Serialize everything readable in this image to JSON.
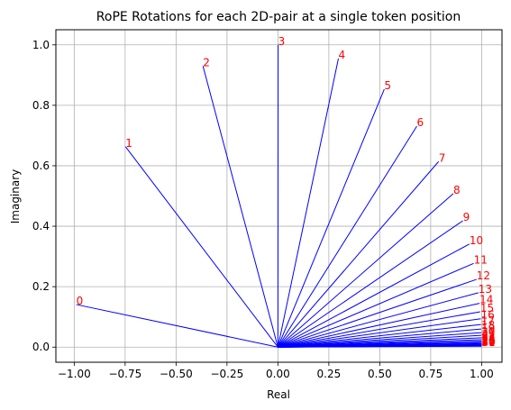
{
  "chart_data": {
    "type": "line",
    "title": "RoPE Rotations for each 2D-pair at a single token position",
    "xlabel": "Real",
    "ylabel": "Imaginary",
    "xlim": [
      -1.09,
      1.1
    ],
    "ylim": [
      -0.05,
      1.05
    ],
    "xticks": [
      -1.0,
      -0.75,
      -0.5,
      -0.25,
      0.0,
      0.25,
      0.5,
      0.75,
      1.0
    ],
    "xtick_labels": [
      "−1.00",
      "−0.75",
      "−0.50",
      "−0.25",
      "0.00",
      "0.25",
      "0.50",
      "0.75",
      "1.00"
    ],
    "yticks": [
      0.0,
      0.2,
      0.4,
      0.6,
      0.8,
      1.0
    ],
    "ytick_labels": [
      "0.0",
      "0.2",
      "0.4",
      "0.6",
      "0.8",
      "1.0"
    ],
    "grid": true,
    "line_color": "#0000ff",
    "label_color": "#ff0000",
    "segments_from": [
      0,
      0
    ],
    "points": [
      {
        "label": "0",
        "x": -0.99,
        "y": 0.141
      },
      {
        "label": "1",
        "x": -0.748,
        "y": 0.663
      },
      {
        "label": "2",
        "x": -0.368,
        "y": 0.93
      },
      {
        "label": "3",
        "x": 0.001,
        "y": 1.0
      },
      {
        "label": "4",
        "x": 0.297,
        "y": 0.955
      },
      {
        "label": "5",
        "x": 0.522,
        "y": 0.853
      },
      {
        "label": "6",
        "x": 0.682,
        "y": 0.731
      },
      {
        "label": "7",
        "x": 0.789,
        "y": 0.614
      },
      {
        "label": "8",
        "x": 0.861,
        "y": 0.508
      },
      {
        "label": "9",
        "x": 0.908,
        "y": 0.418
      },
      {
        "label": "10",
        "x": 0.94,
        "y": 0.341
      },
      {
        "label": "11",
        "x": 0.961,
        "y": 0.277
      },
      {
        "label": "12",
        "x": 0.975,
        "y": 0.224
      },
      {
        "label": "13",
        "x": 0.984,
        "y": 0.18
      },
      {
        "label": "14",
        "x": 0.99,
        "y": 0.145
      },
      {
        "label": "15",
        "x": 0.993,
        "y": 0.117
      },
      {
        "label": "16",
        "x": 0.996,
        "y": 0.094
      },
      {
        "label": "17",
        "x": 0.997,
        "y": 0.075
      },
      {
        "label": "18",
        "x": 0.998,
        "y": 0.06
      },
      {
        "label": "19",
        "x": 0.999,
        "y": 0.048
      },
      {
        "label": "20",
        "x": 0.999,
        "y": 0.039
      },
      {
        "label": "21",
        "x": 1.0,
        "y": 0.031
      },
      {
        "label": "22",
        "x": 1.0,
        "y": 0.025
      },
      {
        "label": "23",
        "x": 1.0,
        "y": 0.02
      },
      {
        "label": "24",
        "x": 1.0,
        "y": 0.016
      },
      {
        "label": "25",
        "x": 1.0,
        "y": 0.013
      },
      {
        "label": "26",
        "x": 1.0,
        "y": 0.01
      },
      {
        "label": "27",
        "x": 1.0,
        "y": 0.008
      },
      {
        "label": "28",
        "x": 1.0,
        "y": 0.006
      },
      {
        "label": "29",
        "x": 1.0,
        "y": 0.005
      },
      {
        "label": "30",
        "x": 1.0,
        "y": 0.004
      },
      {
        "label": "31",
        "x": 1.0,
        "y": 0.003
      }
    ]
  }
}
